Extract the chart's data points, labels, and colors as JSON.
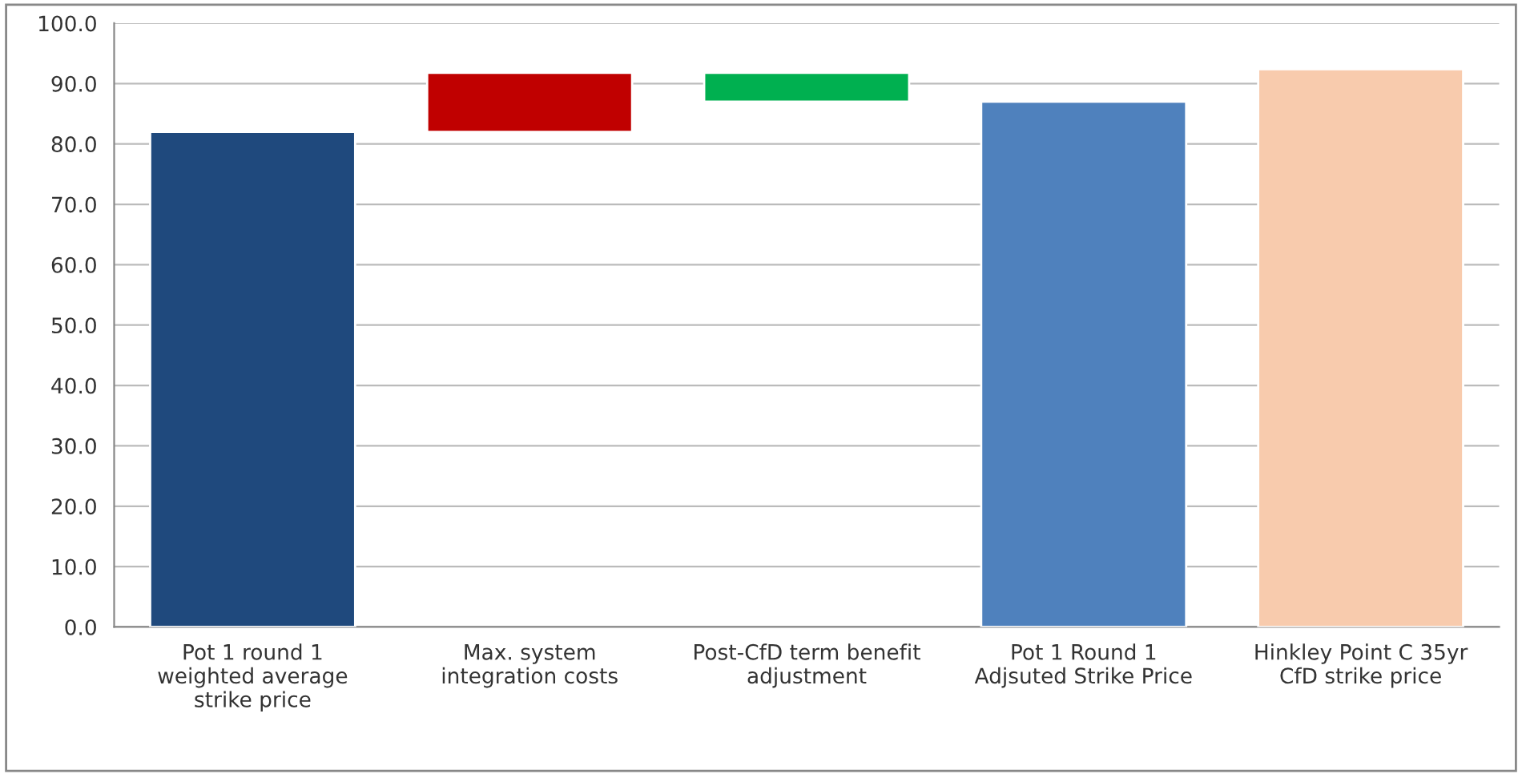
{
  "chart_data": {
    "type": "bar",
    "categories": [
      "Pot 1 round 1\nweighted average\nstrike price",
      "Max. system\nintegration costs",
      "Post-CfD term benefit\nadjustment",
      "Pot 1 Round 1\nAdjsuted Strike Price",
      "Hinkley Point C 35yr\nCfD strike price"
    ],
    "values": [
      82.0,
      9.8,
      4.8,
      87.0,
      92.4
    ],
    "base": [
      0,
      82.0,
      87.0,
      0,
      0
    ],
    "colors": [
      "#1f497d",
      "#c00000",
      "#00b050",
      "#4f81bd",
      "#f8cbad"
    ],
    "ylim": [
      0,
      100
    ],
    "yticks": [
      {
        "value": 0,
        "label": "0.0"
      },
      {
        "value": 10,
        "label": "10.0"
      },
      {
        "value": 20,
        "label": "20.0"
      },
      {
        "value": 30,
        "label": "30.0"
      },
      {
        "value": 40,
        "label": "40.0"
      },
      {
        "value": 50,
        "label": "50.0"
      },
      {
        "value": 60,
        "label": "60.0"
      },
      {
        "value": 70,
        "label": "70.0"
      },
      {
        "value": 80,
        "label": "80.0"
      },
      {
        "value": 90,
        "label": "90.0"
      },
      {
        "value": 100,
        "label": "100.0"
      }
    ],
    "grid": "y"
  }
}
